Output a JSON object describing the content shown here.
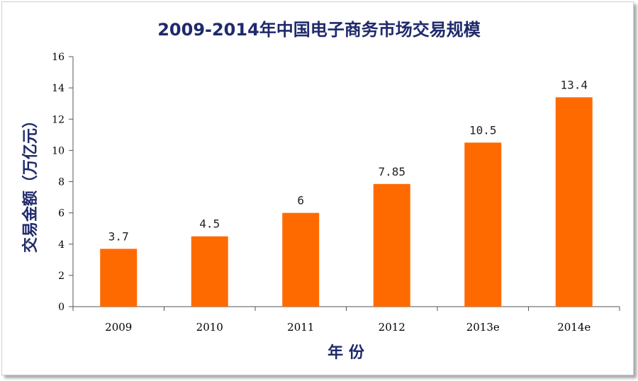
{
  "chart_data": {
    "type": "bar",
    "title": "2009-2014年中国电子商务市场交易规模",
    "xlabel": "年 份",
    "ylabel": "交易金额（万亿元）",
    "categories": [
      "2009",
      "2010",
      "2011",
      "2012",
      "2013e",
      "2014e"
    ],
    "values": [
      3.7,
      4.5,
      6,
      7.85,
      10.5,
      13.4
    ],
    "value_labels": [
      "3.7",
      "4.5",
      "6",
      "7.85",
      "10.5",
      "13.4"
    ],
    "ylim": [
      0,
      16
    ],
    "yticks": [
      0,
      2,
      4,
      6,
      8,
      10,
      12,
      14,
      16
    ],
    "grid": false,
    "legend": "none",
    "bar_color": "#ff6a00",
    "title_color": "#1f2a6b",
    "axis_label_color": "#1f2a6b"
  }
}
